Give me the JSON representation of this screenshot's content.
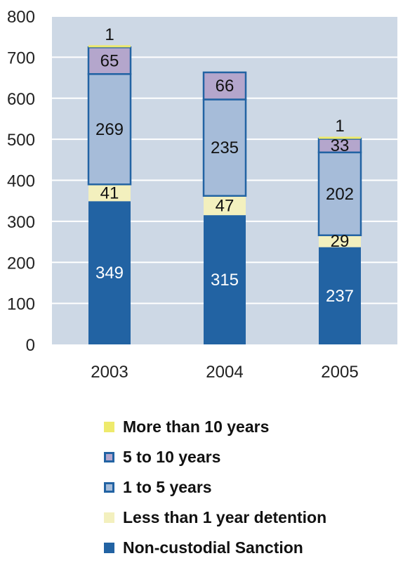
{
  "chart_data": {
    "type": "bar",
    "stacked": true,
    "categories": [
      "2003",
      "2004",
      "2005"
    ],
    "series": [
      {
        "name": "Non-custodial Sanction",
        "values": [
          349,
          315,
          237
        ],
        "color": "#2263a3",
        "border": "#2263a3",
        "labelColor": "#ffffff"
      },
      {
        "name": "Less than 1 year detention",
        "values": [
          41,
          47,
          29
        ],
        "color": "#f3f0be",
        "border": "#f3f0be",
        "labelColor": "#111111"
      },
      {
        "name": "1 to 5 years",
        "values": [
          269,
          235,
          202
        ],
        "color": "#a6bcd9",
        "border": "#2263a3",
        "labelColor": "#111111"
      },
      {
        "name": "5 to 10 years",
        "values": [
          65,
          66,
          33
        ],
        "color": "#b4a6cc",
        "border": "#2263a3",
        "labelColor": "#111111"
      },
      {
        "name": "More than 10 years",
        "values": [
          1,
          null,
          1
        ],
        "color": "#eeea6c",
        "border": "#eeea6c",
        "labelColor": "#111111"
      }
    ],
    "ylim": [
      0,
      800
    ],
    "yticks": [
      0,
      100,
      200,
      300,
      400,
      500,
      600,
      700,
      800
    ],
    "grid": true,
    "plot_background": "#cdd8e5",
    "legend_position": "bottom",
    "legend_order": [
      "More than 10 years",
      "5 to 10 years",
      "1 to 5 years",
      "Less than 1 year detention",
      "Non-custodial Sanction"
    ]
  }
}
